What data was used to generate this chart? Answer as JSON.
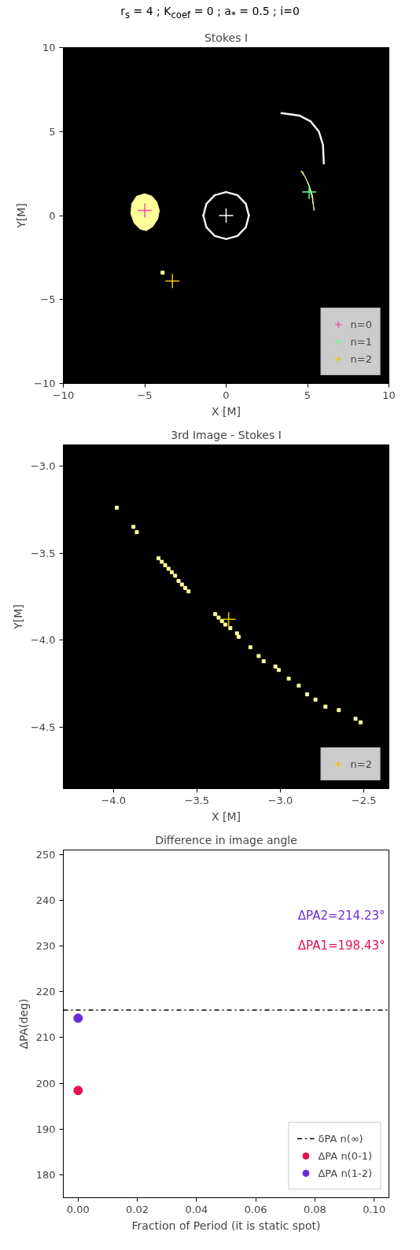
{
  "chart_data": [
    {
      "type": "scatter",
      "title": "r$_{s}$ = 4 ; K$_{coef}$ = 0 ; a$_{*}$ = 0.5 ; i=0",
      "subtitle": "Stokes I",
      "xlabel": "X [M]",
      "ylabel": "Y[M]",
      "xlim": [
        -10,
        10
      ],
      "ylim": [
        -10,
        10
      ],
      "xticks": [
        -10,
        -5,
        0,
        5,
        10
      ],
      "yticks": [
        -10,
        -5,
        0,
        5,
        10
      ],
      "grid": false,
      "legend": "bottom right",
      "bands": [
        {
          "axis": "x",
          "from": -10,
          "to": 10,
          "color": "#000000"
        }
      ],
      "series": [
        {
          "type": "area",
          "color": "#ffff99",
          "x": [
            -5.0,
            -4.55,
            -4.25,
            -4.1,
            -4.2,
            -4.5,
            -4.9,
            -5.3,
            -5.65,
            -5.85,
            -5.8,
            -5.5
          ],
          "values": [
            1.3,
            1.15,
            0.8,
            0.3,
            -0.2,
            -0.65,
            -0.9,
            -0.8,
            -0.45,
            0.1,
            0.7,
            1.15
          ]
        },
        {
          "type": "area",
          "color": "#ffff99",
          "x": [
            4.6,
            4.85,
            5.1,
            5.3,
            5.4,
            5.3,
            5.15,
            4.95,
            4.7
          ],
          "values": [
            2.65,
            2.3,
            1.8,
            1.2,
            0.3,
            1.0,
            1.6,
            2.1,
            2.6
          ]
        },
        {
          "type": "scatter",
          "marker": "square",
          "color": "#ffff99",
          "x": [
            -3.9
          ],
          "values": [
            -3.4
          ]
        },
        {
          "type": "line",
          "color": "#f5f5f5",
          "x": [
            -1.4,
            -1.21,
            -0.7,
            0,
            0.7,
            1.21,
            1.4
          ],
          "values": [
            0,
            0.7,
            1.21,
            1.4,
            1.21,
            0.7,
            0
          ]
        },
        {
          "type": "line",
          "color": "#f5f5f5",
          "x": [
            -1.4,
            -1.21,
            -0.7,
            0,
            0.7,
            1.21,
            1.4
          ],
          "values": [
            0,
            -0.7,
            -1.21,
            -1.4,
            -1.21,
            -0.7,
            0
          ]
        },
        {
          "type": "scatter",
          "marker": "cross",
          "color": "#ffffff",
          "x": [
            0
          ],
          "values": [
            0
          ]
        },
        {
          "type": "line",
          "color": "#f5f5f5",
          "x": [
            6.0,
            5.95,
            5.7,
            5.2,
            4.5,
            3.4
          ],
          "values": [
            3.1,
            4.2,
            5.0,
            5.6,
            5.95,
            6.1
          ]
        },
        {
          "name": "n=0",
          "type": "scatter",
          "marker": "cross",
          "color": "#ff4da6",
          "x": [
            -5.0
          ],
          "values": [
            0.3
          ]
        },
        {
          "name": "n=1",
          "type": "scatter",
          "marker": "cross",
          "color": "#66ff99",
          "x": [
            5.1
          ],
          "values": [
            1.4
          ]
        },
        {
          "name": "n=2",
          "type": "scatter",
          "marker": "cross",
          "color": "#e6c800",
          "x": [
            -3.3
          ],
          "values": [
            -3.9
          ]
        }
      ]
    },
    {
      "type": "scatter",
      "subtitle": "3rd Image - Stokes I",
      "xlabel": "X [M]",
      "ylabel": "Y[M]",
      "xlim": [
        -4.3,
        -2.35
      ],
      "ylim": [
        -4.85,
        -2.88
      ],
      "xticks": [
        {
          "value": -4,
          "label": "−4.0"
        },
        {
          "value": -3.5,
          "label": "−3.5"
        },
        {
          "value": -3,
          "label": "−3.0"
        },
        {
          "value": -2.5,
          "label": "−2.5"
        }
      ],
      "yticks": [
        {
          "value": -4.5,
          "label": "−4.5"
        },
        {
          "value": -4,
          "label": "−4.0"
        },
        {
          "value": -3.5,
          "label": "−3.5"
        },
        {
          "value": -3,
          "label": "−3.0"
        }
      ],
      "grid": false,
      "legend": "bottom right",
      "bands": [
        {
          "axis": "x",
          "from": -4.3,
          "to": -2.35,
          "color": "#000000"
        }
      ],
      "series": [
        {
          "type": "scatter",
          "marker": "square",
          "color": "#ffff99",
          "x": [
            -3.98,
            -3.88,
            -3.86,
            -3.73,
            -3.71,
            -3.69,
            -3.67,
            -3.65,
            -3.63,
            -3.61,
            -3.59,
            -3.57,
            -3.55,
            -3.39,
            -3.37,
            -3.35,
            -3.33,
            -3.3,
            -3.26,
            -3.25,
            -3.18,
            -3.13,
            -3.1,
            -3.03,
            -3.01,
            -2.95,
            -2.89,
            -2.84,
            -2.79,
            -2.73,
            -2.65,
            -2.55,
            -2.52
          ],
          "values": [
            -3.24,
            -3.35,
            -3.38,
            -3.53,
            -3.55,
            -3.57,
            -3.59,
            -3.61,
            -3.63,
            -3.66,
            -3.68,
            -3.7,
            -3.72,
            -3.85,
            -3.87,
            -3.89,
            -3.91,
            -3.93,
            -3.96,
            -3.98,
            -4.04,
            -4.09,
            -4.12,
            -4.15,
            -4.17,
            -4.22,
            -4.26,
            -4.31,
            -4.34,
            -4.38,
            -4.4,
            -4.45,
            -4.47
          ]
        },
        {
          "name": "n=2",
          "type": "scatter",
          "marker": "cross",
          "color": "#e6c800",
          "x": [
            -3.31
          ],
          "values": [
            -3.88
          ]
        }
      ]
    },
    {
      "type": "scatter",
      "subtitle": "Difference in image angle",
      "xlabel": "Fraction of Period (it is static spot)",
      "ylabel": "ΔPA(deg)",
      "xlim": [
        -0.005,
        0.105
      ],
      "ylim": [
        175,
        251
      ],
      "xticks": [
        {
          "value": 0,
          "label": "0.00"
        },
        {
          "value": 0.02,
          "label": "0.02"
        },
        {
          "value": 0.04,
          "label": "0.04"
        },
        {
          "value": 0.06,
          "label": "0.06"
        },
        {
          "value": 0.08,
          "label": "0.08"
        },
        {
          "value": 0.1,
          "label": "0.10"
        }
      ],
      "yticks": [
        180,
        190,
        200,
        210,
        220,
        230,
        240,
        250
      ],
      "grid": false,
      "legend": "bottom right",
      "marker": "circle",
      "ref_lines": [
        {
          "axis": "y",
          "value": 216,
          "label": "δPA n(∞)",
          "color": "#000000",
          "line_style": "dashdot"
        }
      ],
      "annotations": [
        "ΔPA2=214.23°",
        "ΔPA1=198.43°"
      ],
      "series": [
        {
          "name": "ΔPA n(0-1)",
          "color": "#e6114e",
          "x": [
            0
          ],
          "values": [
            198.43
          ]
        },
        {
          "name": "ΔPA n(1-2)",
          "color": "#6a2bd9",
          "x": [
            0
          ],
          "values": [
            214.23
          ]
        }
      ]
    }
  ]
}
